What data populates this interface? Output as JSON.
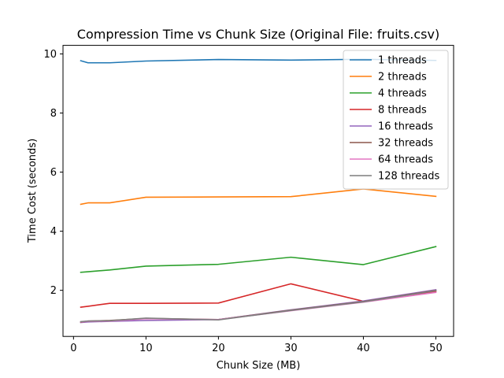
{
  "chart_data": {
    "type": "line",
    "title": "Compression Time vs Chunk Size (Original File: fruits.csv)",
    "xlabel": "Chunk Size (MB)",
    "ylabel": "Time Cost (seconds)",
    "x": [
      1,
      2,
      5,
      10,
      20,
      30,
      40,
      50
    ],
    "xlim": [
      -1.45,
      52.45
    ],
    "ylim": [
      0.44,
      10.29
    ],
    "xticks": [
      0,
      10,
      20,
      30,
      40,
      50
    ],
    "yticks": [
      2,
      4,
      6,
      8,
      10
    ],
    "grid": false,
    "legend_position": "top-right",
    "series": [
      {
        "name": "1 threads",
        "color": "#1f77b4",
        "values": [
          9.77,
          9.7,
          9.7,
          9.76,
          9.81,
          9.79,
          9.82,
          9.78
        ]
      },
      {
        "name": "2 threads",
        "color": "#ff7f0e",
        "values": [
          4.91,
          4.96,
          4.96,
          5.15,
          5.16,
          5.17,
          5.43,
          5.18
        ]
      },
      {
        "name": "4 threads",
        "color": "#2ca02c",
        "values": [
          2.61,
          2.63,
          2.69,
          2.82,
          2.88,
          3.12,
          2.87,
          3.48
        ]
      },
      {
        "name": "8 threads",
        "color": "#d62728",
        "values": [
          1.43,
          1.46,
          1.56,
          1.56,
          1.57,
          2.22,
          1.63,
          1.96
        ]
      },
      {
        "name": "16 threads",
        "color": "#9467bd",
        "values": [
          0.91,
          0.93,
          0.95,
          0.98,
          1.01,
          1.34,
          1.64,
          2.02
        ]
      },
      {
        "name": "32 threads",
        "color": "#8c564b",
        "values": [
          0.92,
          0.96,
          0.98,
          1.05,
          1.01,
          1.33,
          1.62,
          2.0
        ]
      },
      {
        "name": "64 threads",
        "color": "#e377c2",
        "values": [
          0.93,
          0.95,
          0.96,
          1.04,
          1.01,
          1.31,
          1.6,
          1.93
        ]
      },
      {
        "name": "128 threads",
        "color": "#7f7f7f",
        "values": [
          0.94,
          0.96,
          0.97,
          1.06,
          1.0,
          1.32,
          1.61,
          1.99
        ]
      }
    ]
  }
}
